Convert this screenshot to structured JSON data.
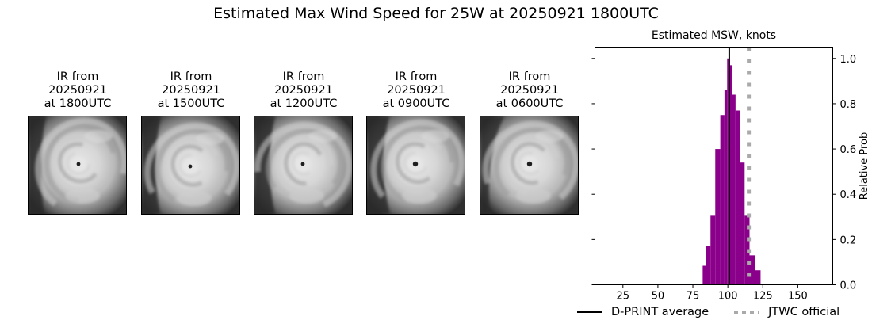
{
  "suptitle": "Estimated Max Wind Speed for 25W at 20250921 1800UTC",
  "ir_panels": [
    {
      "title": "IR from\n20250921\nat 1800UTC",
      "eye": [
        63,
        60
      ],
      "variant": 0
    },
    {
      "title": "IR from\n20250921\nat 1500UTC",
      "eye": [
        61,
        63
      ],
      "variant": 1
    },
    {
      "title": "IR from\n20250921\nat 1200UTC",
      "eye": [
        61,
        60
      ],
      "variant": 2
    },
    {
      "title": "IR from\n20250921\nat 0900UTC",
      "eye": [
        61,
        60
      ],
      "variant": 3
    },
    {
      "title": "IR from\n20250921\nat 0600UTC",
      "eye": [
        62,
        60
      ],
      "variant": 4
    }
  ],
  "chart_data": {
    "type": "bar",
    "title": "Estimated MSW, knots",
    "xlabel": "",
    "ylabel": "Relative Prob",
    "xlim": [
      5,
      175
    ],
    "ylim": [
      0,
      1.05
    ],
    "xticks": [
      25,
      50,
      75,
      100,
      125,
      150
    ],
    "yticks": [
      0.0,
      0.2,
      0.4,
      0.6,
      0.8,
      1.0
    ],
    "ytick_labels": [
      "0.0",
      "0.2",
      "0.4",
      "0.6",
      "0.8",
      "1.0"
    ],
    "yaxis_side": "right",
    "grid": false,
    "bar_color": "#8b008b",
    "histogram": {
      "bin_edges": [
        14.6,
        82.0,
        84.3,
        87.6,
        91.0,
        94.6,
        97.6,
        99.5,
        101.0,
        103.2,
        105.5,
        108.5,
        112.0,
        115.5,
        119.6,
        123.4,
        169.5
      ],
      "values": [
        0.003,
        0.084,
        0.17,
        0.305,
        0.6,
        0.75,
        0.86,
        1.0,
        0.97,
        0.84,
        0.77,
        0.54,
        0.305,
        0.13,
        0.064,
        0.003
      ]
    },
    "lines": [
      {
        "name": "D-PRINT average",
        "x": 101,
        "color": "#000000",
        "style": "solid"
      },
      {
        "name": "JTWC official",
        "x": 115,
        "color": "#aaaaaa",
        "style": "dotted"
      }
    ],
    "legend": {
      "position": "below",
      "entries": [
        "D-PRINT average",
        "JTWC official"
      ]
    }
  },
  "legend": {
    "dprint_label": "D-PRINT average",
    "jtwc_label": "JTWC official"
  }
}
